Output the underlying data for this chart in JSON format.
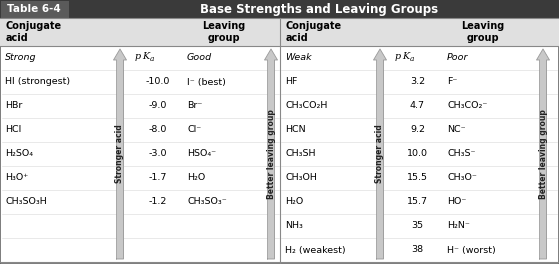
{
  "title_label": "Table 6-4",
  "title_text": "Base Strengths and Leaving Groups",
  "left_data": [
    [
      "Strong",
      "pKa",
      "Good"
    ],
    [
      "HI (strongest)",
      "-10.0",
      "I⁻ (best)"
    ],
    [
      "HBr",
      "-9.0",
      "Br⁻"
    ],
    [
      "HCl",
      "-8.0",
      "Cl⁻"
    ],
    [
      "H₂SO₄",
      "-3.0",
      "HSO₄⁻"
    ],
    [
      "H₃O⁺",
      "-1.7",
      "H₂O"
    ],
    [
      "CH₃SO₃H",
      "-1.2",
      "CH₃SO₃⁻"
    ]
  ],
  "right_data": [
    [
      "Weak",
      "pKa",
      "Poor"
    ],
    [
      "HF",
      "3.2",
      "F⁻"
    ],
    [
      "CH₃CO₂H",
      "4.7",
      "CH₃CO₂⁻"
    ],
    [
      "HCN",
      "9.2",
      "NC⁻"
    ],
    [
      "CH₃SH",
      "10.0",
      "CH₃S⁻"
    ],
    [
      "CH₃OH",
      "15.5",
      "CH₃O⁻"
    ],
    [
      "H₂O",
      "15.7",
      "HO⁻"
    ],
    [
      "NH₃",
      "35",
      "H₂N⁻"
    ],
    [
      "H₂ (weakest)",
      "38",
      "H⁻ (worst)"
    ]
  ],
  "col_header_left_ca": "Conjugate\nacid",
  "col_header_left_lg": "Leaving\ngroup",
  "col_header_right_ca": "Conjugate\nacid",
  "col_header_right_lg": "Leaving\ngroup",
  "arrow_stronger": "Stronger acid",
  "arrow_leaving": "Better leaving group",
  "title_bar_bg": "#3a3a3a",
  "title_label_bg": "#5a5a5a",
  "col_header_bg": "#e0e0e0",
  "table_bg": "#ffffff",
  "border_color": "#888888",
  "arrow_fill": "#c8c8c8",
  "arrow_edge": "#999999"
}
